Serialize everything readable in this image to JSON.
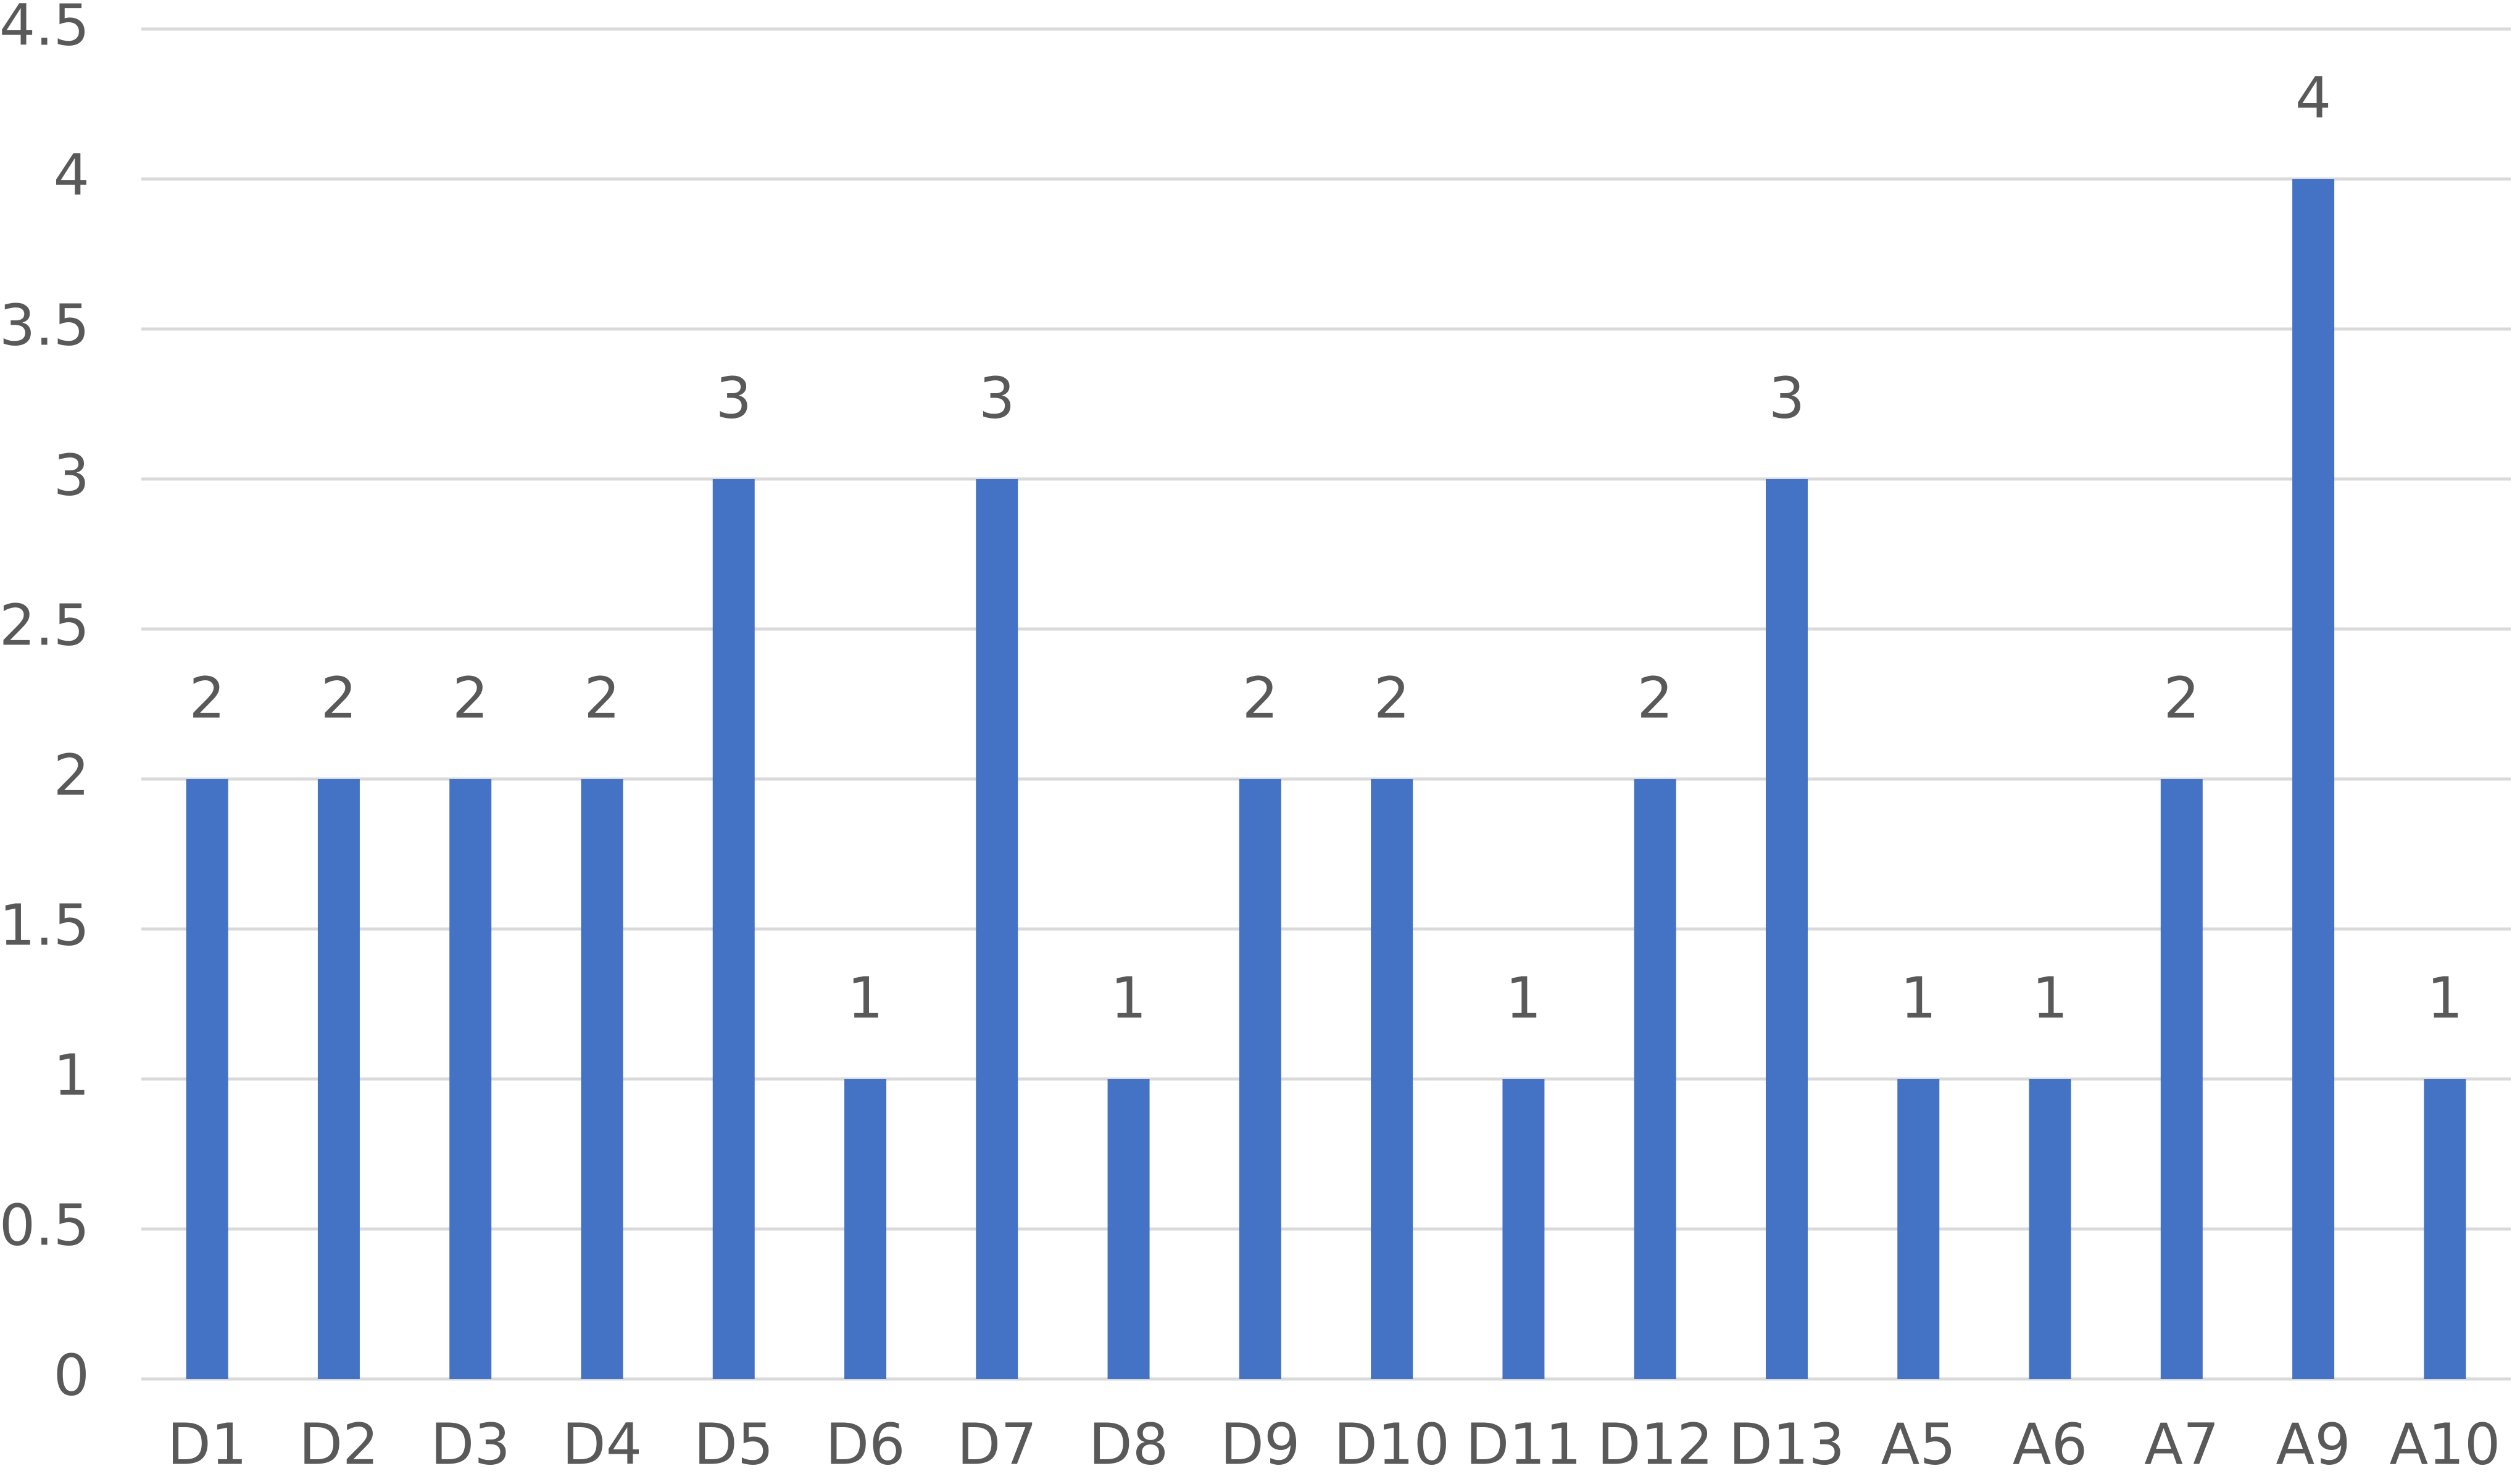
{
  "chart_data": {
    "type": "bar",
    "categories": [
      "D1",
      "D2",
      "D3",
      "D4",
      "D5",
      "D6",
      "D7",
      "D8",
      "D9",
      "D10",
      "D11",
      "D12",
      "D13",
      "A5",
      "A6",
      "A7",
      "A9",
      "A10"
    ],
    "values": [
      2,
      2,
      2,
      2,
      3,
      1,
      3,
      1,
      2,
      2,
      1,
      2,
      3,
      1,
      1,
      2,
      4,
      1
    ],
    "color": "#4472c4",
    "ylim": [
      0,
      4.5
    ],
    "yticks": [
      0,
      0.5,
      1,
      1.5,
      2,
      2.5,
      3,
      3.5,
      4,
      4.5
    ],
    "grid": true,
    "data_labels": true
  }
}
